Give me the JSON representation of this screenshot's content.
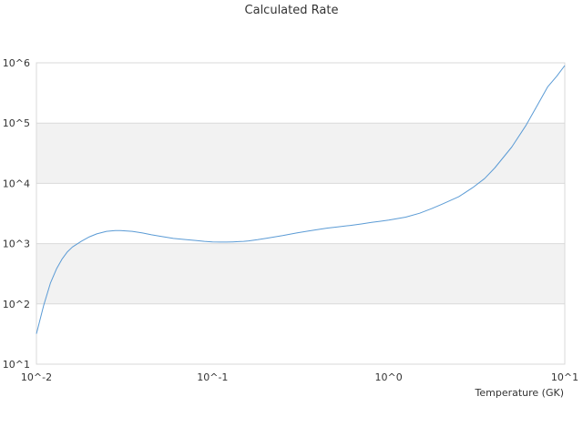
{
  "chart_data": {
    "type": "line",
    "title": "Calculated Rate",
    "xlabel": "Temperature (GK)",
    "ylabel": "",
    "x_scale": "log",
    "y_scale": "log",
    "xlim": [
      0.01,
      10
    ],
    "ylim": [
      10,
      1000000
    ],
    "x_ticks": [
      "10^-2",
      "10^-1",
      "10^0",
      "10^1"
    ],
    "y_ticks": [
      "10^1",
      "10^2",
      "10^3",
      "10^4",
      "10^5",
      "10^6"
    ],
    "grid": "alternating horizontal bands",
    "legend": "none",
    "colors": {
      "series": "#5b9bd5",
      "band": "#f2f2f2",
      "border": "#d9d9d9"
    },
    "series": [
      {
        "x": [
          0.01,
          0.011,
          0.012,
          0.013,
          0.014,
          0.015,
          0.016,
          0.018,
          0.02,
          0.022,
          0.025,
          0.028,
          0.03,
          0.035,
          0.04,
          0.045,
          0.05,
          0.06,
          0.07,
          0.08,
          0.09,
          0.1,
          0.11,
          0.12,
          0.13,
          0.14,
          0.15,
          0.16,
          0.18,
          0.2,
          0.25,
          0.3,
          0.35,
          0.4,
          0.45,
          0.5,
          0.6,
          0.7,
          0.8,
          0.9,
          1.0,
          1.25,
          1.5,
          1.75,
          2.0,
          2.5,
          3.0,
          3.5,
          4.0,
          5.0,
          6.0,
          7.0,
          8.0,
          9.0,
          10.0
        ],
        "y": [
          32,
          95,
          220,
          380,
          560,
          730,
          880,
          1100,
          1300,
          1450,
          1600,
          1650,
          1650,
          1600,
          1500,
          1400,
          1330,
          1220,
          1170,
          1130,
          1090,
          1070,
          1060,
          1060,
          1070,
          1080,
          1090,
          1110,
          1160,
          1220,
          1360,
          1500,
          1620,
          1720,
          1810,
          1880,
          2000,
          2120,
          2250,
          2350,
          2450,
          2750,
          3200,
          3800,
          4500,
          6000,
          8500,
          12000,
          18000,
          40000,
          90000,
          200000,
          400000,
          600000,
          900000
        ]
      }
    ]
  }
}
